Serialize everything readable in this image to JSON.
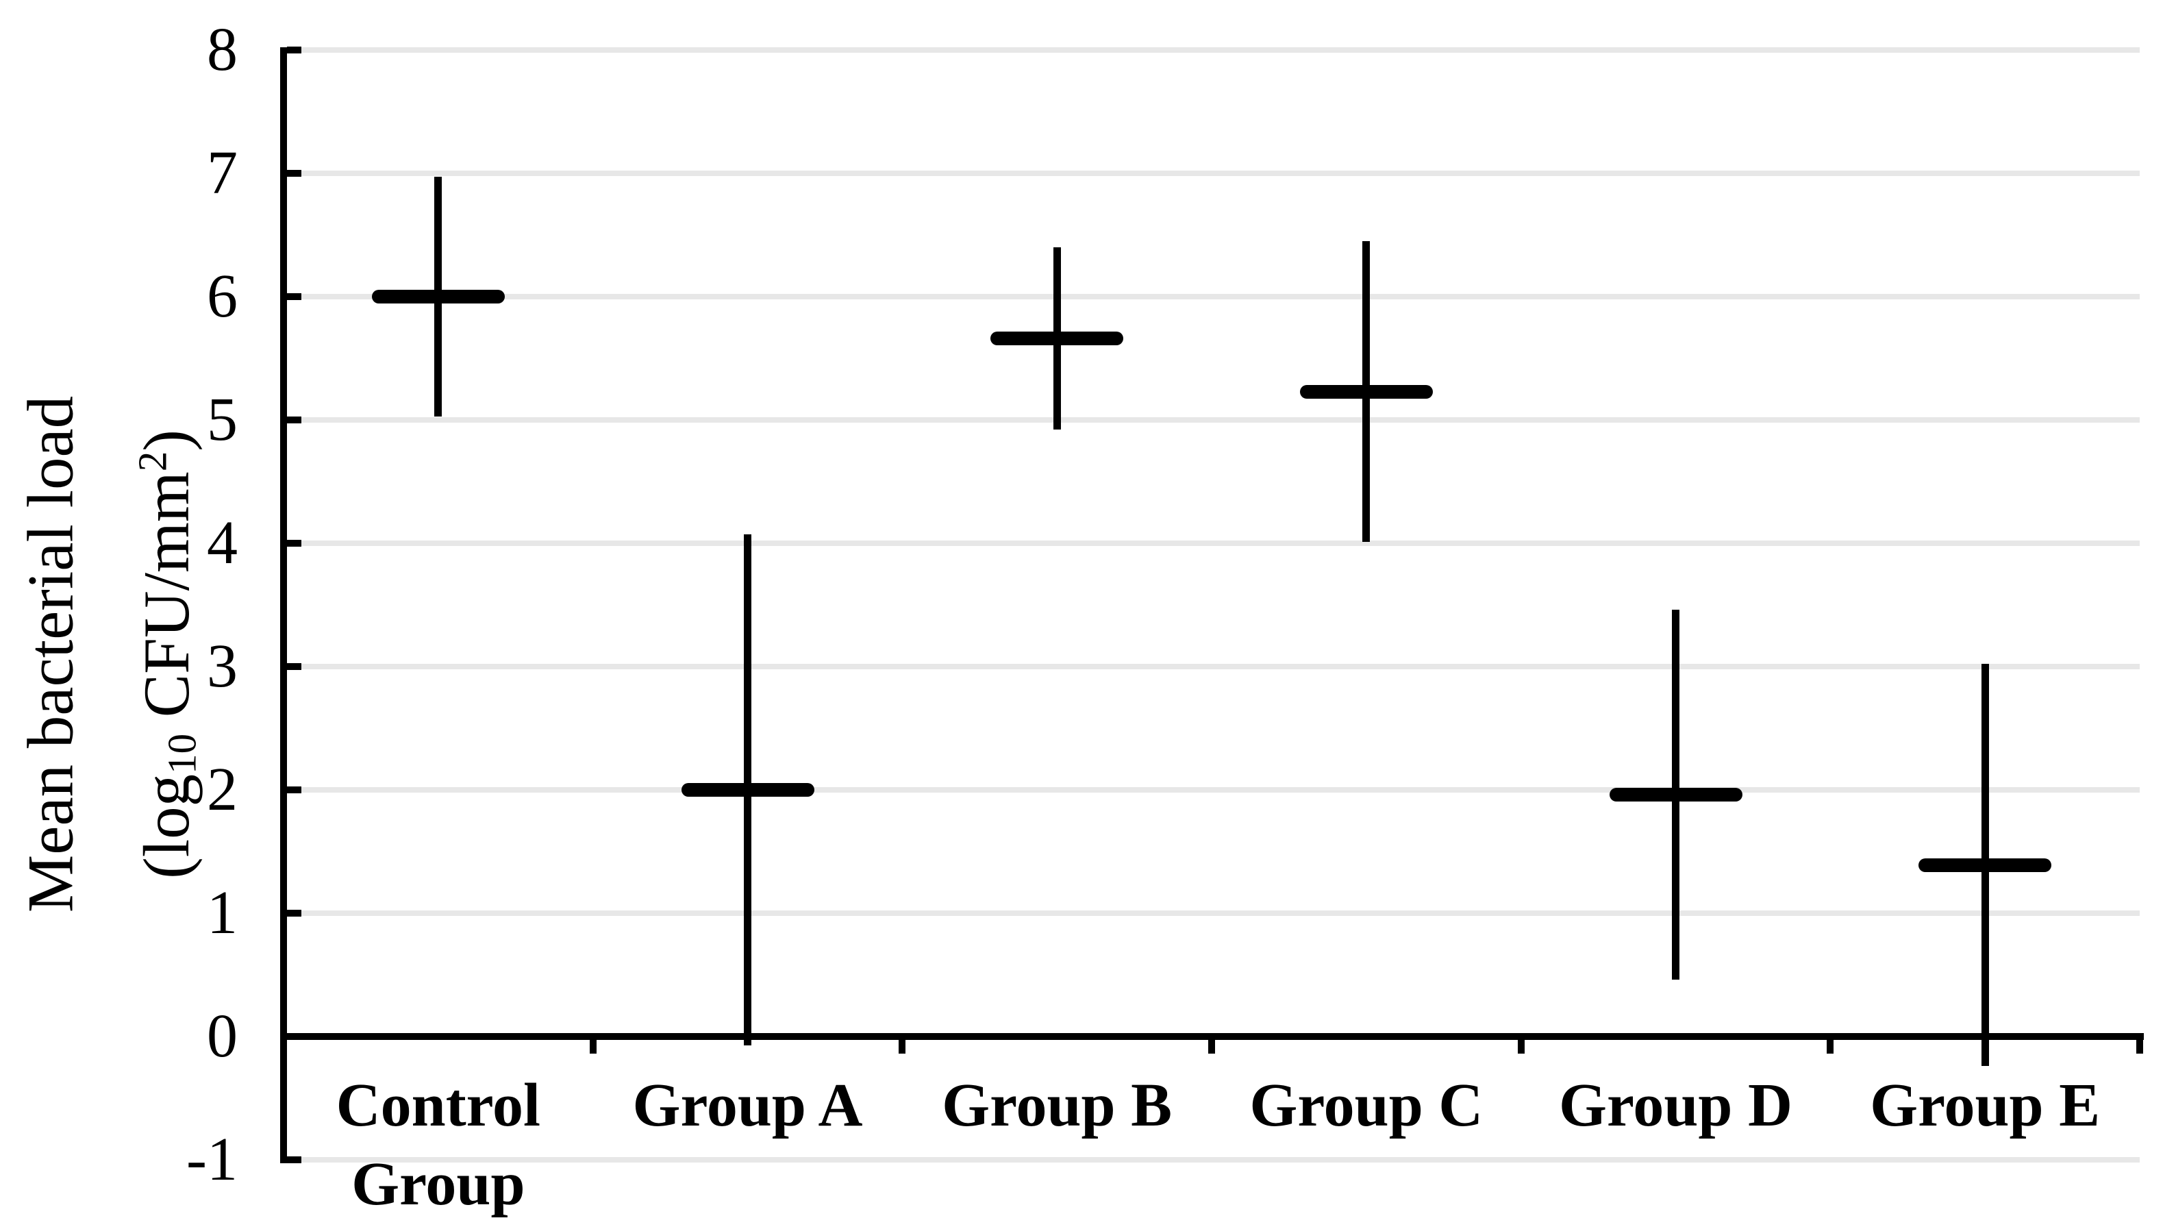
{
  "chart_data": {
    "type": "errorbar",
    "description": "Mean with +/- SD whisker markers per group; horizontal rounded bar = mean, vertical line = error bar",
    "categories": [
      "Control Group",
      "Group A",
      "Group B",
      "Group C",
      "Group D",
      "Group E"
    ],
    "series": [
      {
        "name": "Mean bacterial load",
        "means": [
          6.0,
          2.0,
          5.66,
          5.23,
          1.96,
          1.39
        ],
        "sd": [
          0.97,
          2.07,
          0.74,
          1.22,
          1.5,
          1.63
        ],
        "whisker_upper": [
          6.97,
          4.07,
          6.4,
          6.45,
          3.46,
          3.02
        ],
        "whisker_lower": [
          5.03,
          -0.07,
          4.92,
          4.01,
          0.46,
          -0.24
        ]
      }
    ],
    "ylabel": {
      "line1": "Mean bacterial load",
      "line2": {
        "pre": "(log",
        "sub": "10",
        "mid": " CFU/mm",
        "sup": "2",
        "post": ")"
      }
    },
    "xlabel": "",
    "ylim": [
      -1,
      8
    ],
    "axis_cross_y": 0,
    "ytick_labels": [
      "8",
      "7",
      "6",
      "5",
      "4",
      "3",
      "2",
      "1",
      "0",
      "-1"
    ],
    "ytick_values": [
      8,
      7,
      6,
      5,
      4,
      3,
      2,
      1,
      0,
      -1
    ],
    "grid_values": [
      8,
      7,
      6,
      5,
      4,
      3,
      2,
      1,
      -1
    ],
    "grid": true,
    "legend": "none"
  },
  "colors": {
    "ink": "#000000",
    "grid": "#e7e7e7",
    "background": "#ffffff"
  }
}
